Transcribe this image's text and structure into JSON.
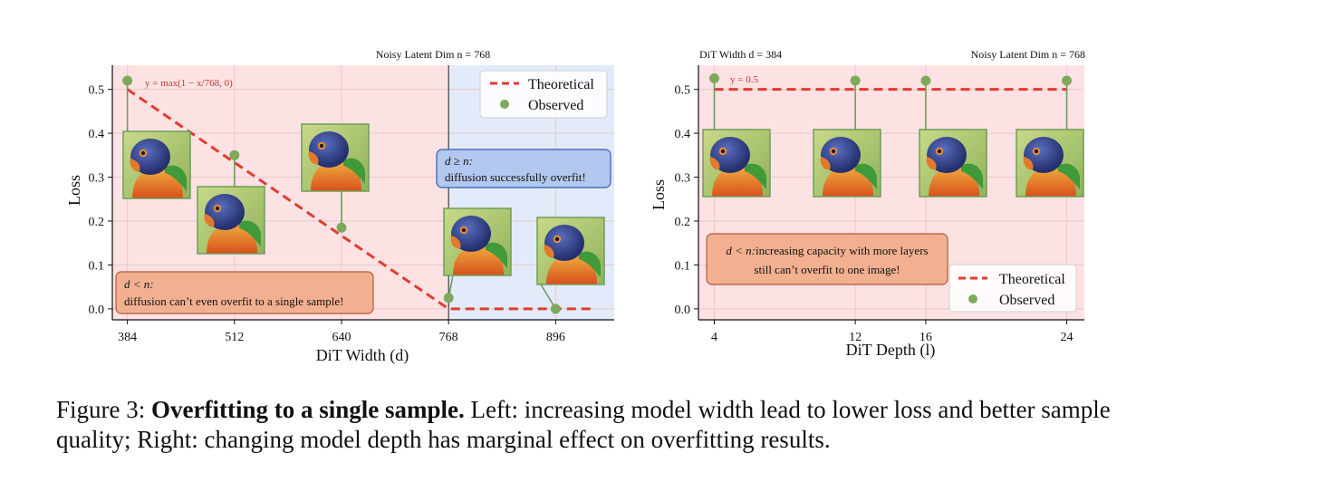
{
  "figure": {
    "label": "Figure 3:",
    "title": "Overfitting to a single sample.",
    "text": " Left: increasing model width lead to lower loss and better sample quality; Right: changing model depth has marginal effect on overfitting results."
  },
  "colors": {
    "theoretical": "#e03c31",
    "observed": "#7daa5a",
    "stem": "#6f9e57",
    "region_underfit": "#fde2e4",
    "region_overfit": "#e3ebfb",
    "box_underfit_fill": "#f2b091",
    "box_underfit_edge": "#b45a37",
    "box_overfit_fill": "#b3c8ee",
    "box_overfit_edge": "#2f5fb0",
    "grid": "#e5c9cc"
  },
  "chart_data": [
    {
      "type": "line+scatter",
      "title": "Noisy Latent Dim n = 768",
      "xlabel": "DiT Width (d)",
      "ylabel": "Loss",
      "xlim": [
        366,
        966
      ],
      "ylim": [
        -0.025,
        0.555
      ],
      "x_ticks": [
        384,
        512,
        640,
        768,
        896
      ],
      "y_ticks": [
        0.0,
        0.1,
        0.2,
        0.3,
        0.4,
        0.5
      ],
      "y_tick_labels": [
        "0.0",
        "0.1",
        "0.2",
        "0.3",
        "0.4",
        "0.5"
      ],
      "vline": 768,
      "regions": [
        {
          "name": "d < n",
          "from": 366,
          "to": 768,
          "color": "#fde2e4"
        },
        {
          "name": "d ≥ n",
          "from": 768,
          "to": 966,
          "color": "#e3ebfb"
        }
      ],
      "series": [
        {
          "name": "Theoretical",
          "style": "dashed",
          "x": [
            384,
            768,
            940
          ],
          "y": [
            0.5,
            0.0,
            0.0
          ]
        },
        {
          "name": "Observed",
          "style": "stem",
          "x": [
            384,
            512,
            640,
            768,
            896
          ],
          "y": [
            0.52,
            0.35,
            0.185,
            0.025,
            0.0
          ]
        }
      ],
      "legend": [
        "Theoretical",
        "Observed"
      ],
      "legend_position": "top-right",
      "formula": "y = max(1 − x/768, 0)",
      "annotations": [
        {
          "title": "d < n:",
          "text": "diffusion can’t even overfit to a single sample!"
        },
        {
          "title": "d ≥ n:",
          "text": "diffusion successfully overfit!"
        }
      ],
      "thumbnails": "parrot sample generated at each width"
    },
    {
      "type": "line+scatter",
      "title_left": "DiT Width d = 384",
      "title_right": "Noisy Latent Dim n = 768",
      "xlabel": "DiT Depth (l)",
      "ylabel": "Loss",
      "xlim": [
        3.1,
        25.0
      ],
      "ylim": [
        -0.025,
        0.555
      ],
      "x_ticks": [
        4,
        12,
        16,
        24
      ],
      "y_ticks": [
        0.0,
        0.1,
        0.2,
        0.3,
        0.4,
        0.5
      ],
      "y_tick_labels": [
        "0.0",
        "0.1",
        "0.2",
        "0.3",
        "0.4",
        "0.5"
      ],
      "series": [
        {
          "name": "Theoretical",
          "style": "dashed",
          "x": [
            4,
            24
          ],
          "y": [
            0.5,
            0.5
          ]
        },
        {
          "name": "Observed",
          "style": "stem",
          "x": [
            4,
            12,
            16,
            24
          ],
          "y": [
            0.525,
            0.52,
            0.52,
            0.52
          ]
        }
      ],
      "legend": [
        "Theoretical",
        "Observed"
      ],
      "legend_position": "lower-right",
      "formula": "y = 0.5",
      "annotations": [
        {
          "title": "d < n:",
          "text_line1": "increasing capacity with more layers",
          "text_line2": "still can’t overfit to one image!"
        }
      ],
      "thumbnails": "parrot sample generated at each depth"
    }
  ]
}
